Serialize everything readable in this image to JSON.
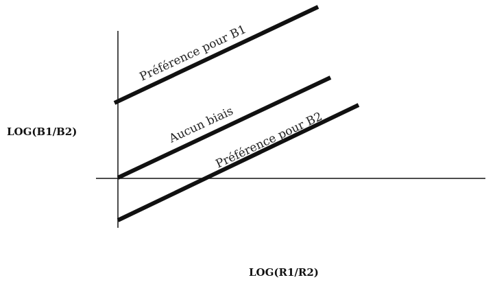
{
  "diagram": {
    "y_axis_label": "LOG(B1/B2)",
    "x_axis_label": "LOG(R1/R2)",
    "lines": [
      {
        "label": "Préférence pour B1"
      },
      {
        "label": "Aucun biais"
      },
      {
        "label": "Préférence pour B2"
      }
    ],
    "colors": {
      "axis": "#111111",
      "line": "#111111",
      "text": "#222222"
    }
  }
}
